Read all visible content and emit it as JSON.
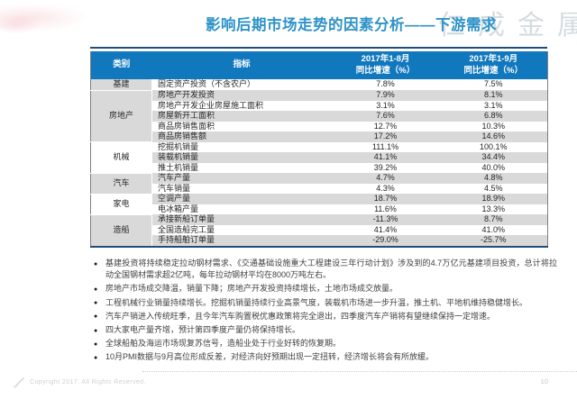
{
  "title": "影响后期市场走势的因素分析——下游需求",
  "watermark": "仁成金属",
  "table": {
    "headers": {
      "category": "类别",
      "indicator": "指标",
      "aug_period": "2017年1-8月",
      "aug_metric": "同比增速（%）",
      "sep_period": "2017年1-9月",
      "sep_metric": "同比增速（%）"
    },
    "groups": [
      {
        "category": "基建",
        "shaded": true,
        "rows": [
          {
            "indicator": "固定资产投资（不含农户）",
            "aug": "7.8%",
            "sep": "7.5%"
          }
        ]
      },
      {
        "category": "房地产",
        "shaded": true,
        "rows": [
          {
            "indicator": "房地产开发投资",
            "aug": "7.9%",
            "sep": "8.1%"
          },
          {
            "indicator": "房地产开发企业房屋施工面积",
            "aug": "3.1%",
            "sep": "3.1%"
          },
          {
            "indicator": "房屋新开工面积",
            "aug": "7.6%",
            "sep": "6.8%"
          },
          {
            "indicator": "商品房销售面积",
            "aug": "12.7%",
            "sep": "10.3%"
          },
          {
            "indicator": "商品房销售额",
            "aug": "17.2%",
            "sep": "14.6%"
          }
        ]
      },
      {
        "category": "机械",
        "shaded": false,
        "rows": [
          {
            "indicator": "挖掘机销量",
            "aug": "111.1%",
            "sep": "100.1%"
          },
          {
            "indicator": "装载机销量",
            "aug": "41.1%",
            "sep": "34.4%"
          },
          {
            "indicator": "推土机销量",
            "aug": "39.2%",
            "sep": "40.0%"
          }
        ]
      },
      {
        "category": "汽车",
        "shaded": true,
        "rows": [
          {
            "indicator": "汽车产量",
            "aug": "4.7%",
            "sep": "4.8%"
          },
          {
            "indicator": "汽车销量",
            "aug": "4.3%",
            "sep": "4.5%"
          }
        ]
      },
      {
        "category": "家电",
        "shaded": false,
        "rows": [
          {
            "indicator": "空调产量",
            "aug": "18.7%",
            "sep": "18.9%"
          },
          {
            "indicator": "电冰箱产量",
            "aug": "11.6%",
            "sep": "13.3%"
          }
        ]
      },
      {
        "category": "造船",
        "shaded": true,
        "rows": [
          {
            "indicator": "承接新船订单量",
            "aug": "-11.3%",
            "sep": "8.7%"
          },
          {
            "indicator": "全国造船完工量",
            "aug": "41.4%",
            "sep": "41.0%"
          },
          {
            "indicator": "手持船舶订单量",
            "aug": "-29.0%",
            "sep": "-25.7%"
          }
        ]
      }
    ]
  },
  "bullets": [
    "基建投资将持续稳定拉动钢材需求、《交通基础设施重大工程建设三年行动计划》涉及到的4.7万亿元基建项目投资，总计将拉动全国钢材需求超2亿吨，每年拉动钢材平均在8000万吨左右。",
    "房地产市场成交降温，销量下降；房地产开发投资持续增长，土地市场成交放量。",
    "工程机械行业销量持续增长。挖掘机销量持续行业高景气度，装载机市场进一步升温，推土机、平地机维持稳健增长。",
    "汽车产销进入传统旺季，且今年汽车购置税优惠政策将完全退出，四季度汽车产销将有望继续保持一定增速。",
    "四大家电产量齐增，预计第四季度产量仍将保持增长。",
    "全球船舶及海运市场现复苏信号，造船业处于行业好转的恢复期。",
    "10月PMI数据与9月高位形成反差，对经济向好预期出现一定扭转，经济增长将会有所放缓。"
  ],
  "footer": {
    "copyright": "Copyright 2017. All Rights Reserved.",
    "page_number": "10"
  },
  "colors": {
    "header_bg": "#1178BE",
    "stripe": "#D9D9D9",
    "title_blue": "#2E93C8",
    "border_dark": "#1F4E79",
    "watermark_gray": "#B9C6CC"
  }
}
